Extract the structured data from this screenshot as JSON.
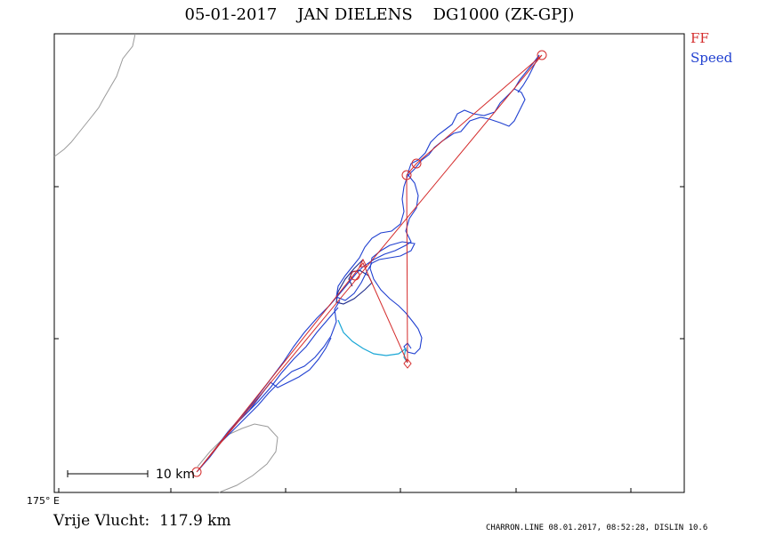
{
  "title": "05-01-2017    JAN DIELENS    DG1000 (ZK-GPJ)",
  "legend": {
    "ff_label": "FF",
    "speed_label": "Speed",
    "ff_color": "#d42b2b",
    "speed_color": "#1f3fd0",
    "speed_light_color": "#1aa7d6",
    "speed_dark_color": "#1c2a8a",
    "coast_color": "#9a9a9a"
  },
  "scale_bar": {
    "label": "10 km"
  },
  "longitude_label": "175° E",
  "distance": {
    "label": "Vrije Vlucht:",
    "value": "117.9 km"
  },
  "footer": "CHARRON.LINE 08.01.2017, 08:52:28, DISLIN 10.6"
}
